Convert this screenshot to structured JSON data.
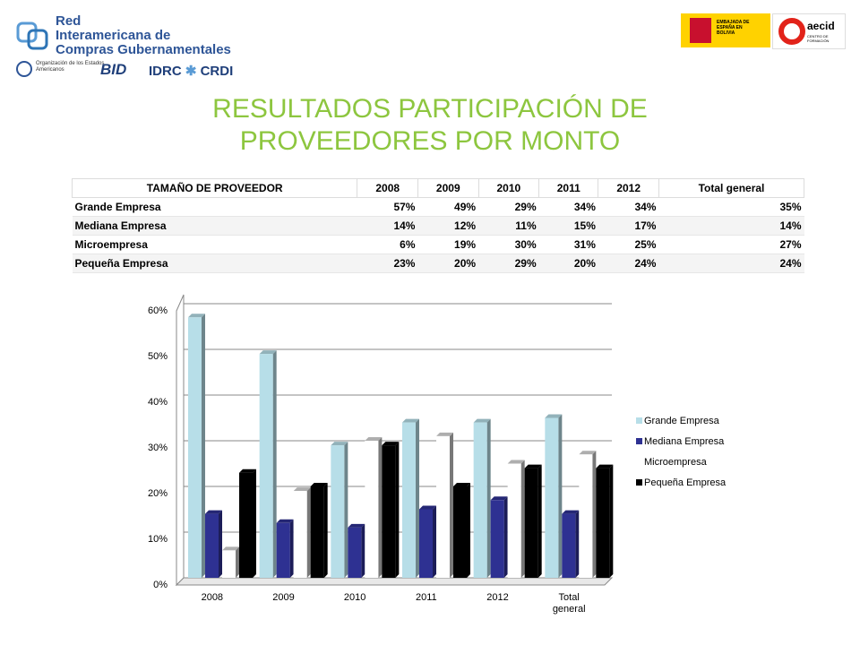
{
  "header": {
    "network_line1": "Red",
    "network_line2": "Interamericana de",
    "network_line3": "Compras Gubernamentales",
    "oas": "Organización de los Estados Americanos",
    "bid": "BID",
    "idrc": "IDRC",
    "crdi": "CRDI",
    "embassy": "EMBAJADA DE ESPAÑA EN BOLIVIA",
    "aecid": "aecid",
    "aecid_sub": "CENTRO DE FORMACIÓN"
  },
  "title": "RESULTADOS PARTICIPACIÓN DE PROVEEDORES POR MONTO",
  "table": {
    "header": [
      "TAMAÑO DE PROVEEDOR",
      "2008",
      "2009",
      "2010",
      "2011",
      "2012",
      "Total general"
    ],
    "rows": [
      [
        "Grande Empresa",
        "57%",
        "49%",
        "29%",
        "34%",
        "34%",
        "35%"
      ],
      [
        "Mediana Empresa",
        "14%",
        "12%",
        "11%",
        "15%",
        "17%",
        "14%"
      ],
      [
        "Microempresa",
        "6%",
        "19%",
        "30%",
        "31%",
        "25%",
        "27%"
      ],
      [
        "Pequeña Empresa",
        "23%",
        "20%",
        "29%",
        "20%",
        "24%",
        "24%"
      ]
    ]
  },
  "chart_data": {
    "type": "bar",
    "categories": [
      "2008",
      "2009",
      "2010",
      "2011",
      "2012",
      "Total general"
    ],
    "series": [
      {
        "name": "Grande Empresa",
        "color": "#b7dee8",
        "values": [
          57,
          49,
          29,
          34,
          34,
          35
        ]
      },
      {
        "name": "Mediana Empresa",
        "color": "#2e3192",
        "values": [
          14,
          12,
          11,
          15,
          17,
          14
        ]
      },
      {
        "name": "Microempresa",
        "color": "#ffffff",
        "values": [
          6,
          19,
          30,
          31,
          25,
          27
        ]
      },
      {
        "name": "Pequeña Empresa",
        "color": "#000000",
        "values": [
          23,
          20,
          29,
          20,
          24,
          24
        ]
      }
    ],
    "ylim": [
      0,
      60
    ],
    "yticks": [
      {
        "value": 0,
        "label": "0%"
      },
      {
        "value": 10,
        "label": "10%"
      },
      {
        "value": 20,
        "label": "20%"
      },
      {
        "value": 30,
        "label": "30%"
      },
      {
        "value": 40,
        "label": "40%"
      },
      {
        "value": 50,
        "label": "50%"
      },
      {
        "value": 60,
        "label": "60%"
      }
    ],
    "grid": true,
    "legend": "right"
  }
}
